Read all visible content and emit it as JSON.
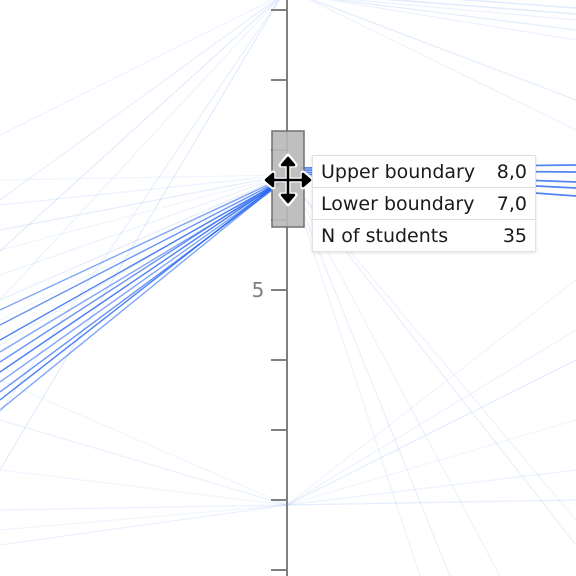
{
  "axis": {
    "label_five": "5"
  },
  "brush": {
    "move_icon": "move-arrows-icon"
  },
  "tooltip": {
    "rows": [
      {
        "label": "Upper boundary",
        "value": "8,0"
      },
      {
        "label": "Lower boundary",
        "value": "7,0"
      },
      {
        "label": "N of students",
        "value": "35"
      }
    ]
  },
  "colors": {
    "line_active": "#1a5cf0",
    "line_faint": "#9bbcf5",
    "axis": "#808080",
    "brush_fill": "#b8b8b8",
    "brush_stroke": "#707070"
  }
}
